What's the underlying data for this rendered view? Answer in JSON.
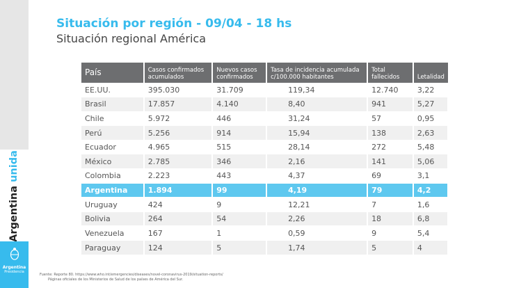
{
  "header": {
    "title": "Situación por región - 09/04 - 18 hs",
    "subtitle": "Situación regional América"
  },
  "sidebar": {
    "brand": "Argentina",
    "brand_accent": "unida",
    "logo_line1": "Argentina",
    "logo_line2": "Presidencia"
  },
  "colors": {
    "accent": "#37bbed",
    "header_bg": "#6d6e70",
    "highlight_row": "#5ec8ef"
  },
  "table": {
    "headers": [
      "País",
      "Casos confirmados acumulados",
      "Nuevos casos confirmados",
      "Tasa de incidencia acumulada c/100.000 habitantes",
      "Total fallecidos",
      "Letalidad"
    ],
    "rows": [
      [
        "EE.UU.",
        "395.030",
        "31.709",
        "119,34",
        "12.740",
        "3,22"
      ],
      [
        "Brasil",
        "17.857",
        "4.140",
        "8,40",
        "941",
        "5,27"
      ],
      [
        "Chile",
        "5.972",
        "446",
        "31,24",
        "57",
        "0,95"
      ],
      [
        "Perú",
        "5.256",
        "914",
        "15,94",
        "138",
        "2,63"
      ],
      [
        "Ecuador",
        "4.965",
        "515",
        "28,14",
        "272",
        "5,48"
      ],
      [
        "México",
        "2.785",
        "346",
        "2,16",
        "141",
        "5,06"
      ],
      [
        "Colombia",
        "2.223",
        "443",
        "4,37",
        "69",
        "3,1"
      ],
      [
        "Argentina",
        "1.894",
        "99",
        "4,19",
        "79",
        "4,2"
      ],
      [
        "Uruguay",
        "424",
        "9",
        "12,21",
        "7",
        "1,6"
      ],
      [
        "Bolivia",
        "264",
        "54",
        "2,26",
        "18",
        "6,8"
      ],
      [
        "Venezuela",
        "167",
        "1",
        "0,59",
        "9",
        "5,4"
      ],
      [
        "Paraguay",
        "124",
        "5",
        "1,74",
        "5",
        "4"
      ]
    ],
    "highlighted_country": "Argentina"
  },
  "footer": {
    "line1": "Fuente: Reporte 80. https://www.who.int/emergencies/diseases/novel-coronavirus-2019/situation-reports/",
    "line2": "Páginas oficiales de los Ministerios de Salud de los países de América del Sur."
  }
}
